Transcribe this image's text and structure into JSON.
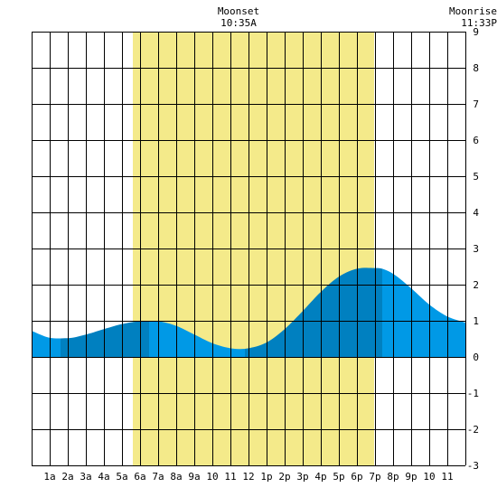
{
  "chart_data": {
    "type": "area",
    "title": "",
    "xlabel": "",
    "ylabel": "",
    "x_tick_labels": [
      "1a",
      "2a",
      "3a",
      "4a",
      "5a",
      "6a",
      "7a",
      "8a",
      "9a",
      "10",
      "11",
      "12",
      "1p",
      "2p",
      "3p",
      "4p",
      "5p",
      "6p",
      "7p",
      "8p",
      "9p",
      "10",
      "11"
    ],
    "y_ticks": [
      9,
      8,
      7,
      6,
      5,
      4,
      3,
      2,
      1,
      0,
      -1,
      -2,
      -3
    ],
    "xlim_hours": [
      0,
      24
    ],
    "ylim": [
      -3,
      9
    ],
    "grid": true,
    "daylight_hours": [
      5.6,
      18.95
    ],
    "annotations": [
      {
        "name": "Moonset",
        "time": "10:35A"
      },
      {
        "name": "Moonrise",
        "time": "11:33P"
      }
    ],
    "tide_series": {
      "name": "",
      "x_hours": [
        0,
        1,
        2,
        3,
        4,
        5,
        6,
        6.5,
        7,
        8,
        9,
        10,
        11,
        11.5,
        12,
        13,
        14,
        15,
        16,
        17,
        18,
        19,
        19.4,
        20,
        21,
        22,
        23,
        24
      ],
      "y_values": [
        0.72,
        0.53,
        0.52,
        0.62,
        0.77,
        0.91,
        0.99,
        1.0,
        0.99,
        0.86,
        0.62,
        0.38,
        0.24,
        0.22,
        0.24,
        0.4,
        0.77,
        1.27,
        1.8,
        2.22,
        2.44,
        2.46,
        2.44,
        2.3,
        1.9,
        1.45,
        1.12,
        0.95
      ]
    },
    "tide_extremes": [
      {
        "type": "low",
        "hour": 1.6
      },
      {
        "type": "high",
        "hour": 6.5
      },
      {
        "type": "low",
        "hour": 11.8
      },
      {
        "type": "high",
        "hour": 19.4
      }
    ]
  },
  "colors": {
    "daylight": "#f4ea8a",
    "tide_light": "#0099e6",
    "tide_dark": "#0080c0",
    "grid": "#000000",
    "background": "#ffffff"
  }
}
